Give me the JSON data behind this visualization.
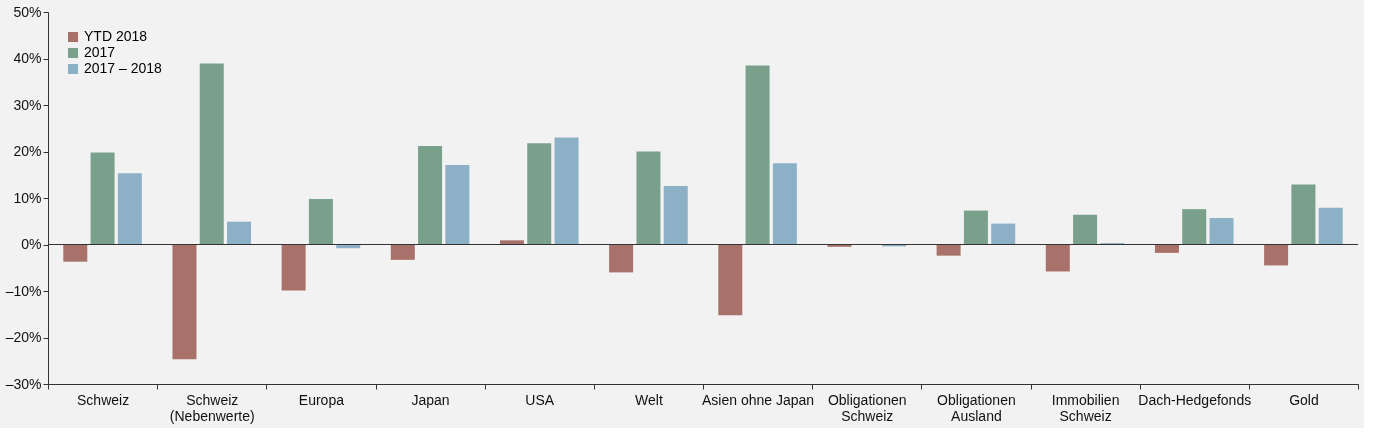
{
  "chart_data": {
    "type": "bar",
    "categories": [
      "Schweiz",
      "Schweiz (Nebenwerte)",
      "Europa",
      "Japan",
      "USA",
      "Welt",
      "Asien ohne Japan",
      "Obligationen Schweiz",
      "Obligationen Ausland",
      "Immobilien Schweiz",
      "Dach-Hedgefonds",
      "Gold"
    ],
    "series": [
      {
        "name": "YTD 2018",
        "color": "#a8726b",
        "values": [
          -3.7,
          -24.7,
          -9.9,
          -3.3,
          0.9,
          -6.0,
          -15.2,
          -0.5,
          -2.4,
          -5.8,
          -1.8,
          -4.5
        ]
      },
      {
        "name": "2017",
        "color": "#78a08a",
        "values": [
          19.8,
          38.9,
          9.8,
          21.2,
          21.8,
          20.0,
          38.5,
          0.0,
          7.3,
          6.4,
          7.6,
          12.9
        ]
      },
      {
        "name": "2017 – 2018",
        "color": "#8cb0c6",
        "values": [
          15.3,
          4.9,
          -0.8,
          17.1,
          23.0,
          12.6,
          17.5,
          -0.4,
          4.5,
          0.3,
          5.7,
          7.9
        ]
      }
    ],
    "ylim": [
      -30,
      50
    ],
    "yticks": [
      {
        "value": -30,
        "label": "–30%"
      },
      {
        "value": -20,
        "label": "–20%"
      },
      {
        "value": -10,
        "label": "–10%"
      },
      {
        "value": 0,
        "label": "0%"
      },
      {
        "value": 10,
        "label": "10%"
      },
      {
        "value": 20,
        "label": "20%"
      },
      {
        "value": 30,
        "label": "30%"
      },
      {
        "value": 40,
        "label": "40%"
      },
      {
        "value": 50,
        "label": "50%"
      }
    ],
    "ref_lines": [
      {
        "axis": "y",
        "value": 0,
        "label": null
      }
    ],
    "grid": false,
    "legend": "top left"
  }
}
